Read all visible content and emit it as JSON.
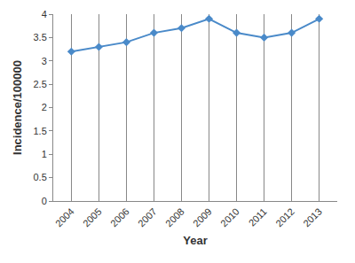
{
  "chart_data": {
    "type": "line",
    "categories": [
      "2004",
      "2005",
      "2006",
      "2007",
      "2008",
      "2009",
      "2010",
      "2011",
      "2012",
      "2013"
    ],
    "values": [
      3.2,
      3.3,
      3.4,
      3.6,
      3.7,
      3.9,
      3.6,
      3.5,
      3.6,
      3.9
    ],
    "color": "#4a8ac9",
    "marker": "diamond",
    "x_label": "Year",
    "y_label": "Incidence/100000",
    "ylim": [
      0,
      4
    ],
    "yticks": [
      0,
      0.5,
      1,
      1.5,
      2,
      2.5,
      3,
      3.5,
      4
    ],
    "grid": true
  }
}
